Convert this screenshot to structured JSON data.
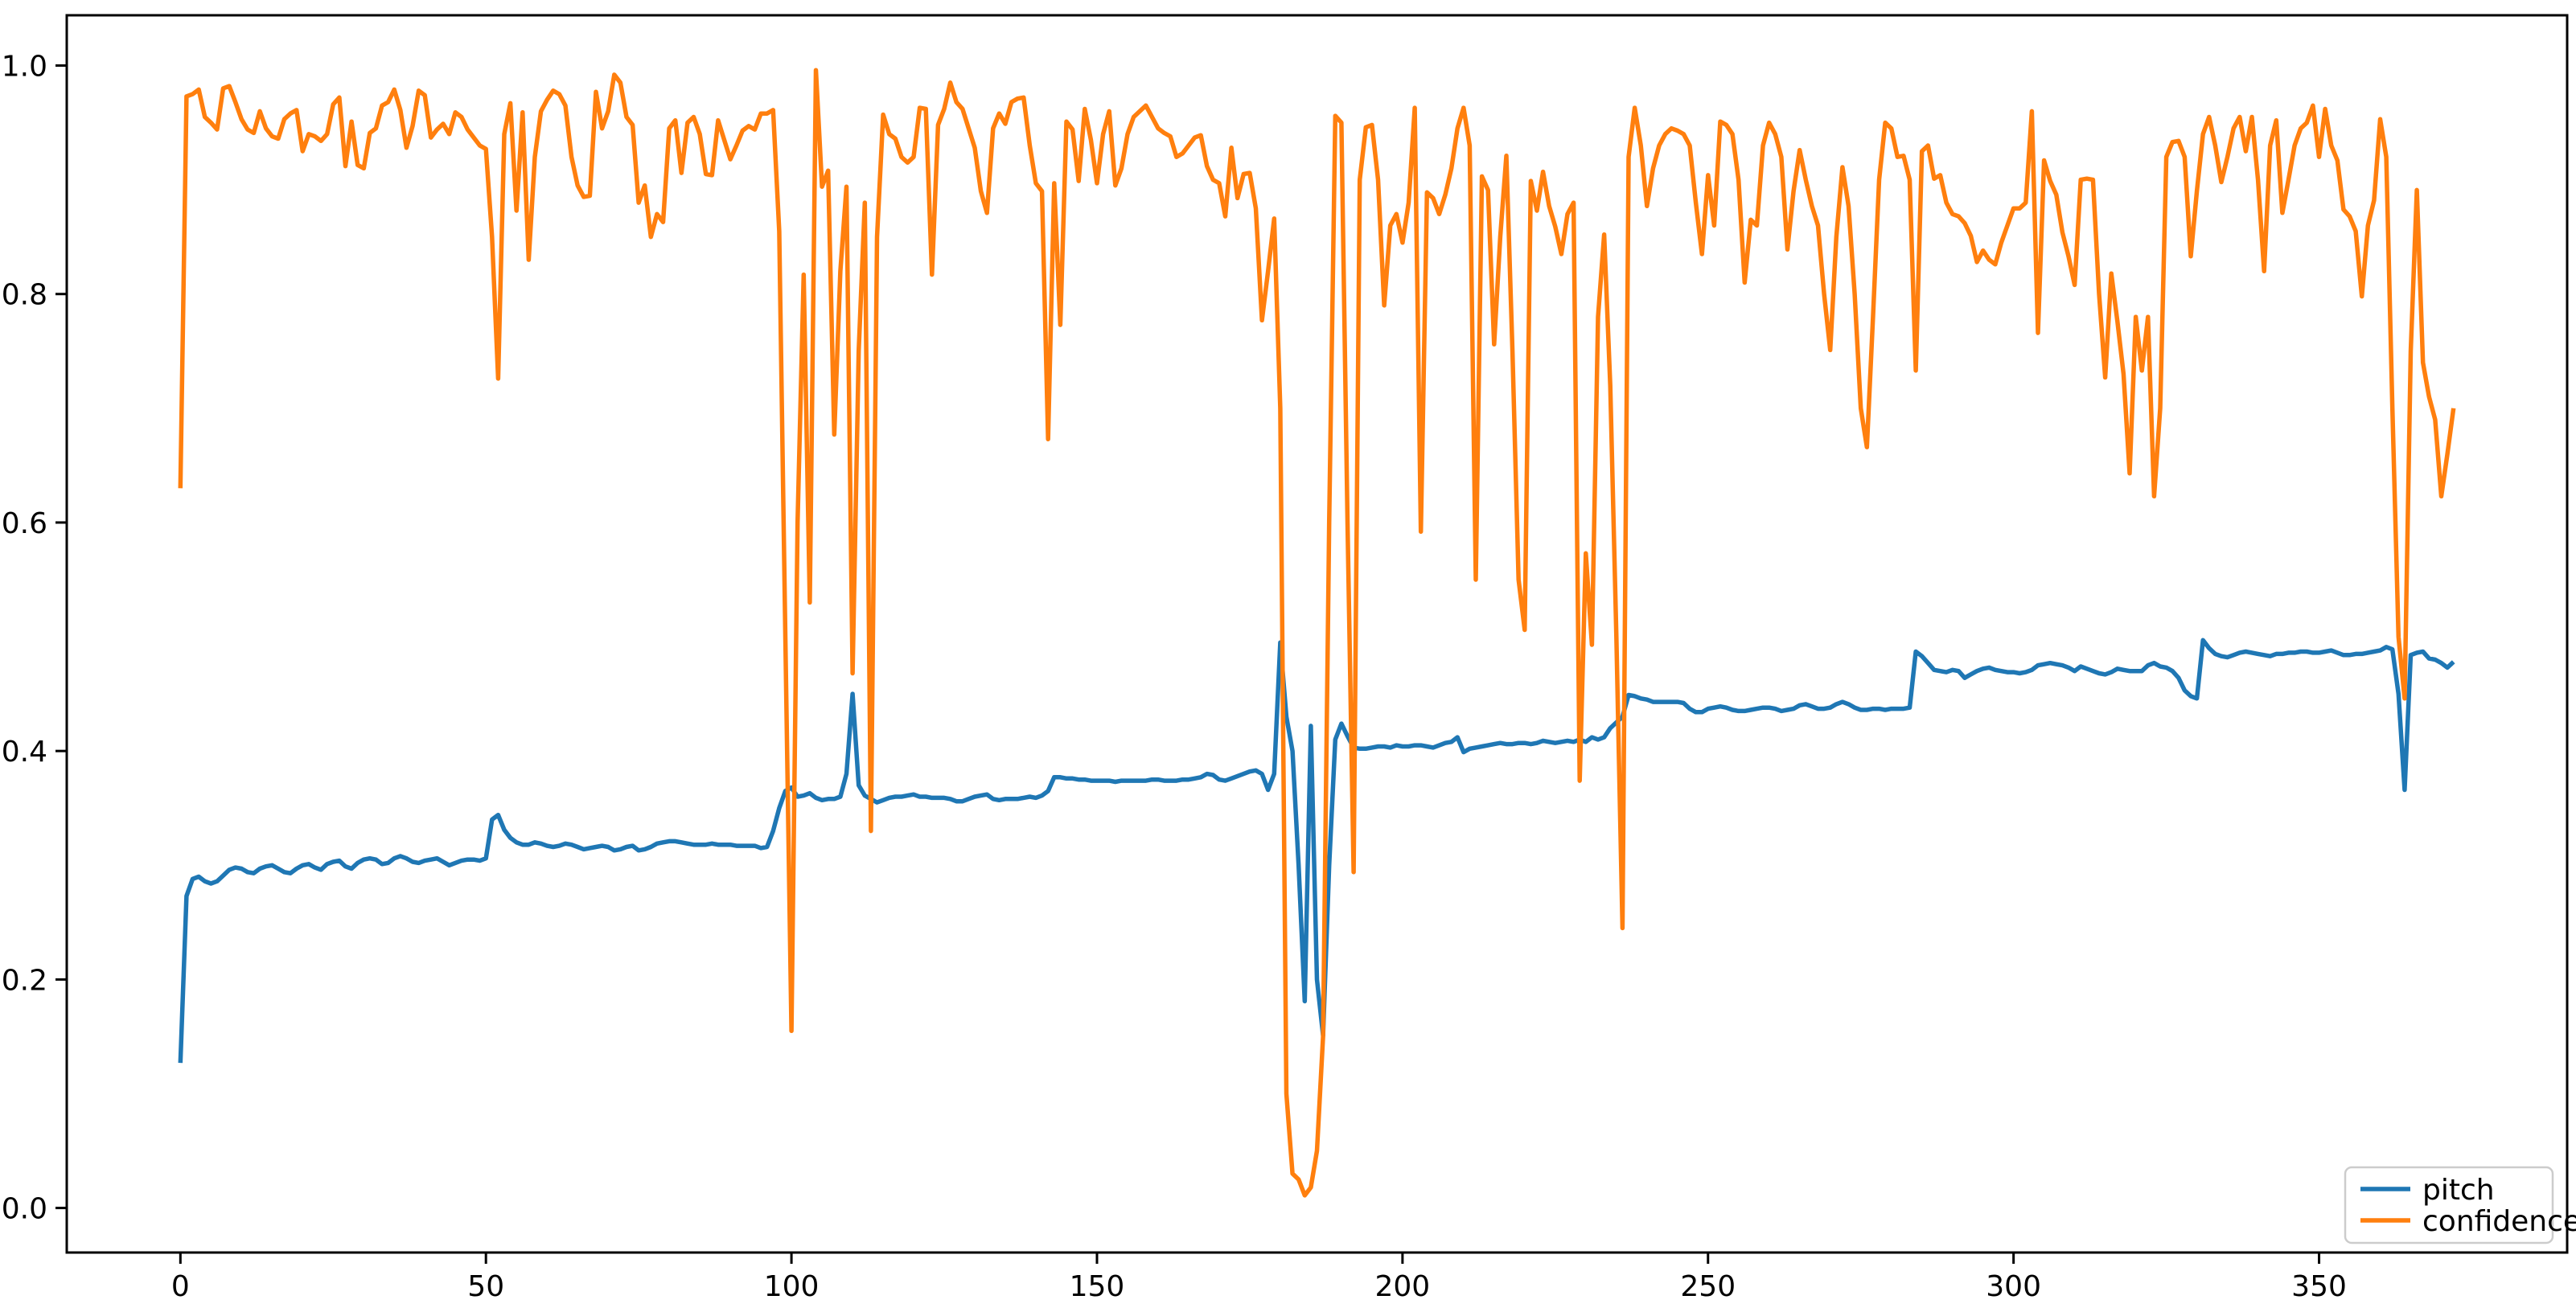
{
  "figure": {
    "background_color": "#ffffff",
    "frame_color": "#000000"
  },
  "legend": {
    "position": "lower right",
    "items": [
      {
        "label": "pitch",
        "color": "#1f77b4"
      },
      {
        "label": "confidence",
        "color": "#ff7f0e"
      }
    ]
  },
  "chart_data": {
    "type": "line",
    "grid": false,
    "legend_position": "lower right",
    "xlim": [
      -18.6,
      390.6
    ],
    "ylim": [
      -0.039,
      1.044
    ],
    "x_tick_values": [
      0,
      50,
      100,
      150,
      200,
      250,
      300,
      350
    ],
    "x_tick_labels": [
      "0",
      "50",
      "100",
      "150",
      "200",
      "250",
      "300",
      "350"
    ],
    "y_tick_values": [
      0.0,
      0.2,
      0.4,
      0.6,
      0.8,
      1.0
    ],
    "y_tick_labels": [
      "0.0",
      "0.2",
      "0.4",
      "0.6",
      "0.8",
      "1.0"
    ],
    "x_start": 0,
    "x_step": 1,
    "series": [
      {
        "name": "pitch",
        "color": "#1f77b4",
        "values": [
          0.127,
          0.273,
          0.288,
          0.29,
          0.286,
          0.284,
          0.286,
          0.291,
          0.296,
          0.298,
          0.297,
          0.294,
          0.293,
          0.297,
          0.299,
          0.3,
          0.297,
          0.294,
          0.293,
          0.297,
          0.3,
          0.301,
          0.298,
          0.296,
          0.301,
          0.303,
          0.304,
          0.299,
          0.297,
          0.302,
          0.305,
          0.306,
          0.305,
          0.301,
          0.302,
          0.306,
          0.308,
          0.306,
          0.303,
          0.302,
          0.304,
          0.305,
          0.306,
          0.303,
          0.3,
          0.302,
          0.304,
          0.305,
          0.305,
          0.304,
          0.306,
          0.34,
          0.344,
          0.331,
          0.324,
          0.32,
          0.318,
          0.318,
          0.32,
          0.319,
          0.317,
          0.316,
          0.317,
          0.319,
          0.318,
          0.316,
          0.314,
          0.315,
          0.316,
          0.317,
          0.316,
          0.313,
          0.314,
          0.316,
          0.317,
          0.313,
          0.314,
          0.316,
          0.319,
          0.32,
          0.321,
          0.321,
          0.32,
          0.319,
          0.318,
          0.318,
          0.318,
          0.319,
          0.318,
          0.318,
          0.318,
          0.317,
          0.317,
          0.317,
          0.317,
          0.315,
          0.316,
          0.33,
          0.35,
          0.365,
          0.368,
          0.36,
          0.361,
          0.363,
          0.359,
          0.357,
          0.358,
          0.358,
          0.36,
          0.38,
          0.45,
          0.37,
          0.361,
          0.358,
          0.355,
          0.357,
          0.359,
          0.36,
          0.36,
          0.361,
          0.362,
          0.36,
          0.36,
          0.359,
          0.359,
          0.359,
          0.358,
          0.356,
          0.356,
          0.358,
          0.36,
          0.361,
          0.362,
          0.358,
          0.357,
          0.358,
          0.358,
          0.358,
          0.359,
          0.36,
          0.359,
          0.361,
          0.365,
          0.377,
          0.377,
          0.376,
          0.376,
          0.375,
          0.375,
          0.374,
          0.374,
          0.374,
          0.374,
          0.373,
          0.374,
          0.374,
          0.374,
          0.374,
          0.374,
          0.375,
          0.375,
          0.374,
          0.374,
          0.374,
          0.375,
          0.375,
          0.376,
          0.377,
          0.38,
          0.379,
          0.375,
          0.374,
          0.376,
          0.378,
          0.38,
          0.382,
          0.383,
          0.38,
          0.366,
          0.38,
          0.495,
          0.43,
          0.4,
          0.3,
          0.181,
          0.422,
          0.2,
          0.151,
          0.3,
          0.41,
          0.424,
          0.413,
          0.403,
          0.402,
          0.402,
          0.403,
          0.404,
          0.404,
          0.403,
          0.405,
          0.404,
          0.404,
          0.405,
          0.405,
          0.404,
          0.403,
          0.405,
          0.407,
          0.408,
          0.412,
          0.399,
          0.402,
          0.403,
          0.404,
          0.405,
          0.406,
          0.407,
          0.406,
          0.406,
          0.407,
          0.407,
          0.406,
          0.407,
          0.409,
          0.408,
          0.407,
          0.408,
          0.409,
          0.408,
          0.41,
          0.408,
          0.412,
          0.41,
          0.412,
          0.42,
          0.425,
          0.43,
          0.449,
          0.448,
          0.446,
          0.445,
          0.443,
          0.443,
          0.443,
          0.443,
          0.443,
          0.442,
          0.437,
          0.434,
          0.434,
          0.437,
          0.438,
          0.439,
          0.438,
          0.436,
          0.435,
          0.435,
          0.436,
          0.437,
          0.438,
          0.438,
          0.437,
          0.435,
          0.436,
          0.437,
          0.44,
          0.441,
          0.439,
          0.437,
          0.437,
          0.438,
          0.441,
          0.443,
          0.441,
          0.438,
          0.436,
          0.436,
          0.437,
          0.437,
          0.436,
          0.437,
          0.437,
          0.437,
          0.438,
          0.487,
          0.483,
          0.477,
          0.471,
          0.47,
          0.469,
          0.471,
          0.47,
          0.464,
          0.467,
          0.47,
          0.472,
          0.473,
          0.471,
          0.47,
          0.469,
          0.469,
          0.468,
          0.469,
          0.471,
          0.475,
          0.476,
          0.477,
          0.476,
          0.475,
          0.473,
          0.47,
          0.474,
          0.472,
          0.47,
          0.468,
          0.467,
          0.469,
          0.472,
          0.471,
          0.47,
          0.47,
          0.47,
          0.475,
          0.477,
          0.474,
          0.473,
          0.47,
          0.464,
          0.453,
          0.448,
          0.446,
          0.497,
          0.49,
          0.485,
          0.483,
          0.482,
          0.484,
          0.486,
          0.487,
          0.486,
          0.485,
          0.484,
          0.483,
          0.485,
          0.485,
          0.486,
          0.486,
          0.487,
          0.487,
          0.486,
          0.486,
          0.487,
          0.488,
          0.486,
          0.484,
          0.484,
          0.485,
          0.485,
          0.486,
          0.487,
          0.488,
          0.491,
          0.489,
          0.45,
          0.366,
          0.484,
          0.486,
          0.487,
          0.481,
          0.48,
          0.477,
          0.473,
          0.478
        ]
      },
      {
        "name": "confidence",
        "color": "#ff7f0e",
        "values": [
          0.63,
          0.973,
          0.975,
          0.979,
          0.955,
          0.95,
          0.944,
          0.98,
          0.982,
          0.968,
          0.953,
          0.944,
          0.941,
          0.96,
          0.945,
          0.938,
          0.936,
          0.953,
          0.958,
          0.961,
          0.925,
          0.94,
          0.938,
          0.934,
          0.94,
          0.966,
          0.972,
          0.912,
          0.951,
          0.913,
          0.91,
          0.941,
          0.945,
          0.965,
          0.968,
          0.979,
          0.961,
          0.928,
          0.947,
          0.978,
          0.974,
          0.937,
          0.944,
          0.949,
          0.94,
          0.959,
          0.955,
          0.944,
          0.937,
          0.93,
          0.927,
          0.85,
          0.726,
          0.94,
          0.967,
          0.873,
          0.959,
          0.83,
          0.92,
          0.96,
          0.97,
          0.978,
          0.975,
          0.965,
          0.92,
          0.895,
          0.885,
          0.886,
          0.977,
          0.945,
          0.96,
          0.992,
          0.985,
          0.955,
          0.948,
          0.88,
          0.895,
          0.85,
          0.87,
          0.863,
          0.945,
          0.952,
          0.906,
          0.95,
          0.955,
          0.94,
          0.905,
          0.904,
          0.952,
          0.935,
          0.918,
          0.93,
          0.943,
          0.947,
          0.944,
          0.958,
          0.958,
          0.961,
          0.855,
          0.5,
          0.155,
          0.6,
          0.817,
          0.53,
          0.996,
          0.894,
          0.908,
          0.677,
          0.82,
          0.894,
          0.468,
          0.75,
          0.88,
          0.33,
          0.85,
          0.957,
          0.94,
          0.936,
          0.92,
          0.915,
          0.92,
          0.963,
          0.962,
          0.817,
          0.948,
          0.962,
          0.985,
          0.968,
          0.962,
          0.945,
          0.928,
          0.89,
          0.871,
          0.945,
          0.958,
          0.949,
          0.968,
          0.971,
          0.972,
          0.93,
          0.897,
          0.89,
          0.673,
          0.897,
          0.773,
          0.951,
          0.944,
          0.899,
          0.962,
          0.935,
          0.897,
          0.94,
          0.96,
          0.895,
          0.91,
          0.94,
          0.955,
          0.96,
          0.965,
          0.955,
          0.945,
          0.941,
          0.938,
          0.92,
          0.923,
          0.93,
          0.937,
          0.939,
          0.912,
          0.9,
          0.897,
          0.868,
          0.928,
          0.884,
          0.905,
          0.906,
          0.875,
          0.777,
          0.82,
          0.866,
          0.7,
          0.1,
          0.03,
          0.025,
          0.011,
          0.018,
          0.05,
          0.15,
          0.6,
          0.956,
          0.95,
          0.6,
          0.294,
          0.9,
          0.946,
          0.948,
          0.9,
          0.79,
          0.86,
          0.87,
          0.845,
          0.88,
          0.963,
          0.592,
          0.889,
          0.884,
          0.87,
          0.887,
          0.91,
          0.945,
          0.963,
          0.93,
          0.55,
          0.903,
          0.891,
          0.756,
          0.85,
          0.921,
          0.75,
          0.55,
          0.506,
          0.899,
          0.873,
          0.907,
          0.877,
          0.859,
          0.835,
          0.87,
          0.88,
          0.374,
          0.573,
          0.493,
          0.78,
          0.852,
          0.72,
          0.5,
          0.245,
          0.92,
          0.963,
          0.93,
          0.877,
          0.91,
          0.93,
          0.94,
          0.945,
          0.943,
          0.94,
          0.93,
          0.88,
          0.835,
          0.904,
          0.86,
          0.951,
          0.948,
          0.94,
          0.9,
          0.81,
          0.865,
          0.86,
          0.93,
          0.95,
          0.94,
          0.92,
          0.839,
          0.89,
          0.926,
          0.9,
          0.877,
          0.86,
          0.8,
          0.751,
          0.85,
          0.911,
          0.877,
          0.8,
          0.7,
          0.666,
          0.78,
          0.9,
          0.95,
          0.945,
          0.92,
          0.921,
          0.9,
          0.733,
          0.925,
          0.93,
          0.901,
          0.904,
          0.88,
          0.87,
          0.868,
          0.862,
          0.851,
          0.828,
          0.838,
          0.83,
          0.826,
          0.845,
          0.86,
          0.875,
          0.875,
          0.88,
          0.96,
          0.766,
          0.917,
          0.899,
          0.887,
          0.854,
          0.833,
          0.808,
          0.9,
          0.901,
          0.9,
          0.8,
          0.727,
          0.818,
          0.776,
          0.73,
          0.643,
          0.78,
          0.733,
          0.78,
          0.623,
          0.7,
          0.92,
          0.933,
          0.934,
          0.92,
          0.833,
          0.89,
          0.94,
          0.955,
          0.93,
          0.898,
          0.92,
          0.945,
          0.955,
          0.925,
          0.955,
          0.9,
          0.82,
          0.93,
          0.952,
          0.871,
          0.9,
          0.93,
          0.945,
          0.95,
          0.965,
          0.92,
          0.962,
          0.93,
          0.917,
          0.874,
          0.868,
          0.855,
          0.798,
          0.86,
          0.882,
          0.953,
          0.92,
          0.7,
          0.5,
          0.446,
          0.75,
          0.891,
          0.74,
          0.71,
          0.69,
          0.623,
          0.66,
          0.7
        ]
      }
    ]
  }
}
